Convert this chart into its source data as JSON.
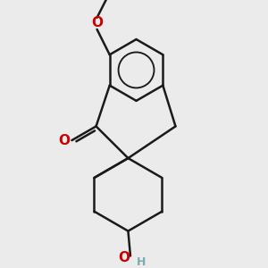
{
  "background_color": "#ebebeb",
  "bond_color": "#1a1a1a",
  "bond_width": 1.8,
  "atom_O_color": "#cc0000",
  "atom_H_color": "#7aadad",
  "figsize": [
    3.0,
    3.0
  ],
  "dpi": 100,
  "xlim": [
    -1.8,
    1.8
  ],
  "ylim": [
    -3.2,
    2.6
  ]
}
